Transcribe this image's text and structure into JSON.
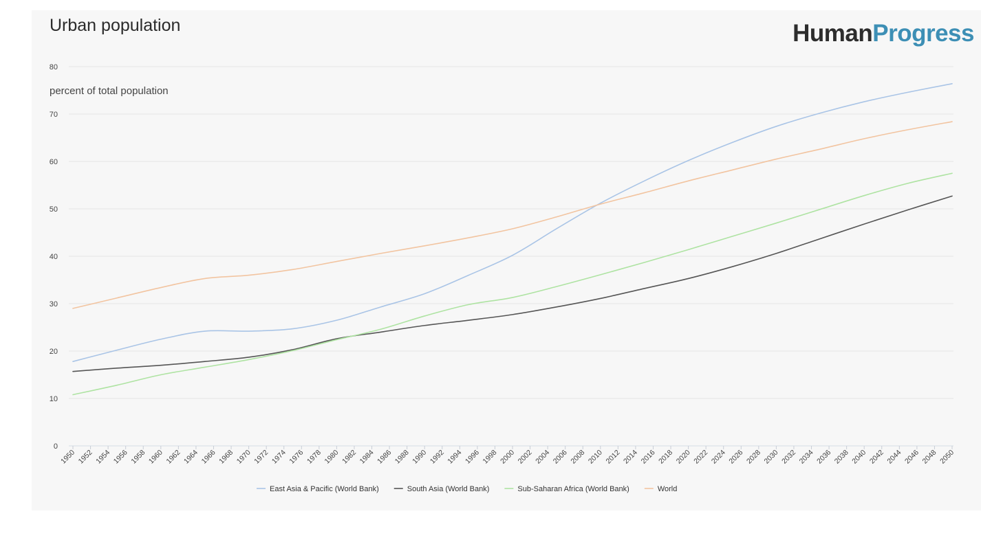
{
  "chart_data": {
    "type": "line",
    "title": "Urban population",
    "brand": {
      "part1": "Human",
      "part2": "Progress"
    },
    "ylabel": "percent of total population",
    "xlabel": "",
    "ylim": [
      0,
      80
    ],
    "yticks": [
      0,
      10,
      20,
      30,
      40,
      50,
      60,
      70,
      80
    ],
    "xlim": [
      1950,
      2050
    ],
    "xticks": [
      "1950",
      "1952",
      "1954",
      "1956",
      "1958",
      "1960",
      "1962",
      "1964",
      "1966",
      "1968",
      "1970",
      "1972",
      "1974",
      "1976",
      "1978",
      "1980",
      "1982",
      "1984",
      "1986",
      "1988",
      "1990",
      "1992",
      "1994",
      "1996",
      "1998",
      "2000",
      "2002",
      "2004",
      "2006",
      "2008",
      "2010",
      "2012",
      "2014",
      "2016",
      "2018",
      "2020",
      "2022",
      "2024",
      "2026",
      "2028",
      "2030",
      "2032",
      "2034",
      "2036",
      "2038",
      "2040",
      "2042",
      "2044",
      "2046",
      "2048",
      "2050"
    ],
    "grid": true,
    "legend_position": "bottom",
    "x": [
      1950,
      1955,
      1960,
      1965,
      1970,
      1975,
      1980,
      1985,
      1990,
      1995,
      2000,
      2005,
      2010,
      2015,
      2020,
      2025,
      2030,
      2035,
      2040,
      2045,
      2050
    ],
    "series": [
      {
        "name": "East Asia & Pacific (World Bank)",
        "color": "#a9c4e6",
        "values": [
          17.8,
          20.2,
          22.5,
          24.2,
          24.2,
          24.7,
          26.5,
          29.3,
          32.1,
          36.0,
          40.2,
          45.8,
          51.2,
          55.9,
          60.2,
          64.0,
          67.4,
          70.2,
          72.6,
          74.6,
          76.4
        ]
      },
      {
        "name": "South Asia (World Bank)",
        "color": "#555555",
        "values": [
          15.7,
          16.4,
          17.0,
          17.8,
          18.7,
          20.3,
          22.6,
          24.0,
          25.4,
          26.5,
          27.7,
          29.3,
          31.1,
          33.2,
          35.3,
          37.8,
          40.6,
          43.7,
          46.8,
          49.8,
          52.7
        ]
      },
      {
        "name": "Sub-Saharan Africa (World Bank)",
        "color": "#aee3a2",
        "values": [
          10.8,
          12.8,
          15.0,
          16.6,
          18.2,
          20.1,
          22.4,
          24.6,
          27.4,
          29.8,
          31.3,
          33.6,
          36.1,
          38.7,
          41.4,
          44.2,
          47.0,
          49.9,
          52.8,
          55.4,
          57.5
        ]
      },
      {
        "name": "World",
        "color": "#f2c4a0",
        "values": [
          29.0,
          31.2,
          33.4,
          35.3,
          36.0,
          37.2,
          38.9,
          40.6,
          42.2,
          43.9,
          45.8,
          48.3,
          51.0,
          53.4,
          55.9,
          58.2,
          60.5,
          62.6,
          64.8,
          66.7,
          68.4
        ]
      }
    ]
  }
}
